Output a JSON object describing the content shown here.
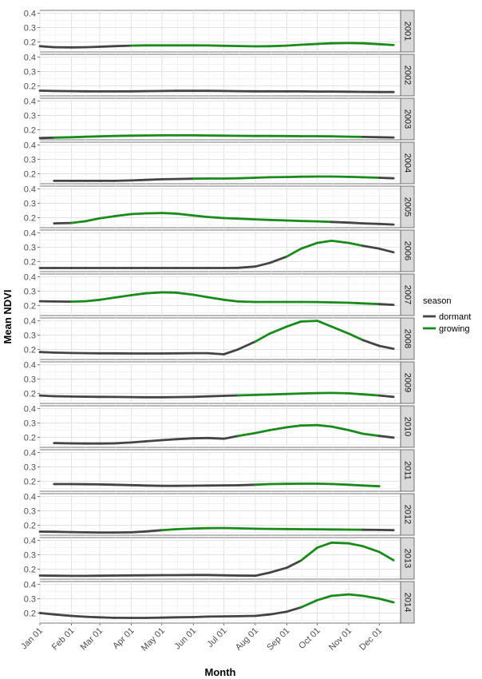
{
  "chart_data": {
    "type": "line",
    "xlabel": "Month",
    "ylabel": "Mean NDVI",
    "x_ticks": [
      "Jan 01",
      "Feb 01",
      "Mar 01",
      "Apr 01",
      "May 01",
      "Jun 01",
      "Jul 01",
      "Aug 01",
      "Sep 01",
      "Oct 01",
      "Nov 01",
      "Dec 01"
    ],
    "y_ticks": [
      "0.2",
      "0.3",
      "0.4"
    ],
    "ylim": [
      0.13,
      0.42
    ],
    "grid": true,
    "legend": {
      "title": "season",
      "position": "right",
      "items": [
        {
          "name": "dormant",
          "color": "#444444"
        },
        {
          "name": "growing",
          "color": "#1a8a1a"
        }
      ]
    },
    "x_values_doy": [
      1,
      15,
      32,
      46,
      60,
      74,
      91,
      105,
      121,
      135,
      152,
      166,
      182,
      196,
      213,
      227,
      244,
      258,
      274,
      288,
      305,
      319,
      335,
      349
    ],
    "panels": [
      {
        "label": "2001",
        "ndvi": [
          0.17,
          0.163,
          0.162,
          0.163,
          0.166,
          0.17,
          0.174,
          0.176,
          0.176,
          0.176,
          0.176,
          0.175,
          0.173,
          0.171,
          0.169,
          0.17,
          0.174,
          0.18,
          0.186,
          0.19,
          0.192,
          0.19,
          0.184,
          0.178
        ],
        "growing": [
          0,
          0,
          0,
          0,
          0,
          0,
          1,
          1,
          1,
          1,
          1,
          1,
          1,
          1,
          1,
          1,
          1,
          1,
          1,
          1,
          1,
          1,
          1,
          1
        ]
      },
      {
        "label": "2002",
        "ndvi": [
          0.166,
          0.164,
          0.163,
          0.162,
          0.161,
          0.161,
          0.162,
          0.163,
          0.164,
          0.165,
          0.165,
          0.165,
          0.164,
          0.163,
          0.162,
          0.162,
          0.161,
          0.161,
          0.16,
          0.16,
          0.159,
          0.158,
          0.157,
          0.157
        ],
        "growing": [
          0,
          0,
          0,
          0,
          0,
          0,
          0,
          0,
          0,
          0,
          0,
          0,
          0,
          0,
          0,
          0,
          0,
          0,
          0,
          0,
          0,
          0,
          0,
          0
        ]
      },
      {
        "label": "2003",
        "ndvi": [
          0.142,
          0.145,
          0.148,
          0.151,
          0.154,
          0.157,
          0.159,
          0.16,
          0.161,
          0.161,
          0.161,
          0.16,
          0.159,
          0.158,
          0.157,
          0.157,
          0.156,
          0.155,
          0.155,
          0.154,
          0.152,
          0.15,
          0.148,
          0.146
        ],
        "growing": [
          0,
          1,
          1,
          1,
          1,
          1,
          1,
          1,
          1,
          1,
          1,
          1,
          1,
          1,
          1,
          1,
          1,
          1,
          1,
          1,
          1,
          1,
          0,
          0
        ]
      },
      {
        "label": "2004",
        "ndvi": [
          null,
          0.15,
          0.15,
          0.15,
          0.15,
          0.15,
          0.153,
          0.157,
          0.161,
          0.163,
          0.165,
          0.166,
          0.166,
          0.168,
          0.172,
          0.175,
          0.177,
          0.179,
          0.18,
          0.18,
          0.178,
          0.175,
          0.172,
          0.168
        ],
        "growing": [
          0,
          0,
          0,
          0,
          0,
          0,
          0,
          0,
          0,
          0,
          1,
          1,
          1,
          1,
          1,
          1,
          1,
          1,
          1,
          1,
          1,
          1,
          1,
          0
        ]
      },
      {
        "label": "2005",
        "ndvi": [
          null,
          0.16,
          0.163,
          0.175,
          0.195,
          0.21,
          0.225,
          0.23,
          0.232,
          0.228,
          0.215,
          0.205,
          0.197,
          0.193,
          0.188,
          0.184,
          0.18,
          0.177,
          0.174,
          0.17,
          0.165,
          0.16,
          0.156,
          0.152
        ],
        "growing": [
          0,
          0,
          1,
          1,
          1,
          1,
          1,
          1,
          1,
          1,
          1,
          1,
          1,
          1,
          1,
          1,
          1,
          1,
          1,
          1,
          0,
          0,
          0,
          0
        ]
      },
      {
        "label": "2006",
        "ndvi": [
          0.155,
          0.155,
          0.155,
          0.155,
          0.155,
          0.155,
          0.155,
          0.155,
          0.155,
          0.155,
          0.155,
          0.155,
          0.155,
          0.156,
          0.165,
          0.19,
          0.235,
          0.29,
          0.33,
          0.345,
          0.33,
          0.31,
          0.29,
          0.265
        ],
        "growing": [
          0,
          0,
          0,
          0,
          0,
          0,
          0,
          0,
          0,
          0,
          0,
          0,
          0,
          0,
          0,
          0,
          1,
          1,
          1,
          1,
          1,
          1,
          0,
          0
        ]
      },
      {
        "label": "2007",
        "ndvi": [
          0.23,
          0.228,
          0.227,
          0.23,
          0.24,
          0.255,
          0.272,
          0.285,
          0.292,
          0.29,
          0.275,
          0.258,
          0.24,
          0.228,
          0.225,
          0.225,
          0.225,
          0.225,
          0.224,
          0.222,
          0.219,
          0.215,
          0.21,
          0.205
        ],
        "growing": [
          0,
          0,
          1,
          1,
          1,
          1,
          1,
          1,
          1,
          1,
          1,
          1,
          1,
          1,
          1,
          1,
          1,
          1,
          1,
          1,
          1,
          1,
          1,
          0
        ]
      },
      {
        "label": "2008",
        "ndvi": [
          0.182,
          0.178,
          0.175,
          0.174,
          0.173,
          0.173,
          0.172,
          0.172,
          0.172,
          0.173,
          0.174,
          0.174,
          0.166,
          0.2,
          0.255,
          0.31,
          0.36,
          0.395,
          0.4,
          0.36,
          0.31,
          0.265,
          0.225,
          0.205
        ],
        "growing": [
          0,
          0,
          0,
          0,
          0,
          0,
          0,
          0,
          0,
          0,
          0,
          0,
          0,
          0,
          1,
          1,
          1,
          1,
          1,
          1,
          1,
          1,
          0,
          0
        ]
      },
      {
        "label": "2009",
        "ndvi": [
          0.185,
          0.18,
          0.178,
          0.177,
          0.176,
          0.175,
          0.174,
          0.173,
          0.173,
          0.174,
          0.176,
          0.179,
          0.183,
          0.186,
          0.189,
          0.192,
          0.196,
          0.199,
          0.202,
          0.203,
          0.2,
          0.193,
          0.185,
          0.176
        ],
        "growing": [
          0,
          0,
          0,
          0,
          0,
          0,
          0,
          0,
          0,
          0,
          0,
          0,
          0,
          1,
          1,
          1,
          1,
          1,
          1,
          1,
          1,
          1,
          1,
          0
        ]
      },
      {
        "label": "2010",
        "ndvi": [
          null,
          0.16,
          0.158,
          0.157,
          0.157,
          0.158,
          0.164,
          0.172,
          0.18,
          0.187,
          0.193,
          0.195,
          0.19,
          0.21,
          0.23,
          0.25,
          0.27,
          0.282,
          0.285,
          0.275,
          0.25,
          0.225,
          0.21,
          0.198
        ],
        "growing": [
          0,
          0,
          0,
          0,
          0,
          0,
          0,
          0,
          0,
          0,
          0,
          0,
          0,
          1,
          1,
          1,
          1,
          1,
          1,
          1,
          1,
          1,
          1,
          0
        ]
      },
      {
        "label": "2011",
        "ndvi": [
          null,
          0.18,
          0.18,
          0.179,
          0.178,
          0.176,
          0.173,
          0.17,
          0.168,
          0.168,
          0.169,
          0.17,
          0.171,
          0.172,
          0.176,
          0.18,
          0.182,
          0.183,
          0.183,
          0.181,
          0.176,
          0.17,
          0.165,
          null
        ],
        "growing": [
          0,
          0,
          0,
          0,
          0,
          0,
          0,
          0,
          0,
          0,
          0,
          0,
          0,
          0,
          1,
          1,
          1,
          1,
          1,
          1,
          1,
          1,
          1,
          0
        ]
      },
      {
        "label": "2012",
        "ndvi": [
          0.155,
          0.154,
          0.152,
          0.15,
          0.149,
          0.149,
          0.15,
          0.156,
          0.165,
          0.172,
          0.177,
          0.179,
          0.18,
          0.178,
          0.175,
          0.174,
          0.173,
          0.172,
          0.171,
          0.17,
          0.169,
          0.168,
          0.167,
          0.165
        ],
        "growing": [
          0,
          0,
          0,
          0,
          0,
          0,
          0,
          0,
          1,
          1,
          1,
          1,
          1,
          1,
          1,
          1,
          1,
          1,
          1,
          1,
          1,
          1,
          0,
          0
        ]
      },
      {
        "label": "2013",
        "ndvi": [
          0.155,
          0.154,
          0.153,
          0.153,
          0.154,
          0.155,
          0.156,
          0.157,
          0.158,
          0.158,
          0.159,
          0.159,
          0.157,
          0.155,
          0.154,
          0.175,
          0.21,
          0.26,
          0.35,
          0.385,
          0.38,
          0.36,
          0.32,
          0.262
        ],
        "growing": [
          0,
          0,
          0,
          0,
          0,
          0,
          0,
          0,
          0,
          0,
          0,
          0,
          0,
          0,
          0,
          0,
          0,
          1,
          1,
          1,
          1,
          1,
          1,
          1
        ]
      },
      {
        "label": "2014",
        "ndvi": [
          0.2,
          0.19,
          0.18,
          0.174,
          0.17,
          0.167,
          0.166,
          0.166,
          0.168,
          0.17,
          0.172,
          0.175,
          0.177,
          0.178,
          0.18,
          0.19,
          0.21,
          0.24,
          0.29,
          0.32,
          0.33,
          0.32,
          0.3,
          0.275
        ],
        "growing": [
          0,
          0,
          0,
          0,
          0,
          0,
          0,
          0,
          0,
          0,
          0,
          0,
          0,
          0,
          0,
          0,
          0,
          1,
          1,
          1,
          1,
          1,
          1,
          1
        ]
      }
    ]
  }
}
